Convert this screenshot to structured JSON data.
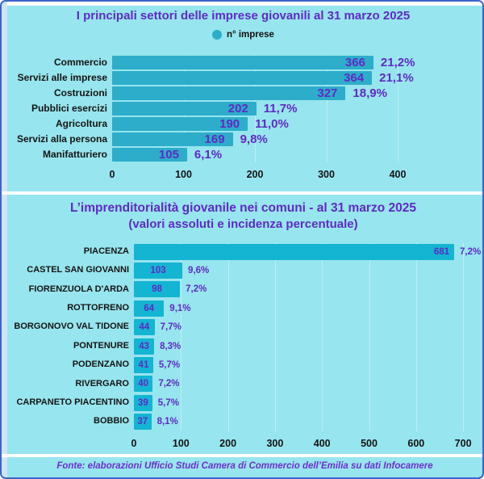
{
  "colors": {
    "background": "#97e5ee",
    "bar_sectors": "#2dadca",
    "bar_comuni": "#14b5d2",
    "purple_text": "#5e2ac6",
    "frame_blue": "#3e63cf",
    "gridline": "#bdeef5",
    "label_black": "#141414"
  },
  "chart_data": [
    {
      "type": "bar",
      "orientation": "horizontal",
      "title": "I principali settori  delle imprese giovanili  al 31 marzo  2025",
      "legend_label": "n° imprese",
      "categories": [
        "Commercio",
        "Servizi alle imprese",
        "Costruzioni",
        "Pubblici esercizi",
        "Agricoltura",
        "Servizi alla persona",
        "Manifatturiero"
      ],
      "values": [
        366,
        364,
        327,
        202,
        190,
        169,
        105
      ],
      "percent_labels": [
        "21,2%",
        "21,1%",
        "18,9%",
        "11,7%",
        "11,0%",
        "9,8%",
        "6,1%"
      ],
      "x_ticks": [
        0,
        100,
        200,
        300,
        400
      ],
      "xlim": [
        0,
        500
      ],
      "grid": true,
      "legend_position": "top-center"
    },
    {
      "type": "bar",
      "orientation": "horizontal",
      "title": "L’imprenditorialità giovanile nei comuni  - al 31 marzo 2025",
      "subtitle": "(valori assoluti e incidenza percentuale)",
      "categories": [
        "PIACENZA",
        "CASTEL SAN GIOVANNI",
        "FIORENZUOLA D'ARDA",
        "ROTTOFRENO",
        "BORGONOVO VAL TIDONE",
        "PONTENURE",
        "PODENZANO",
        "RIVERGARO",
        "CARPANETO PIACENTINO",
        "BOBBIO"
      ],
      "values": [
        681,
        103,
        98,
        64,
        44,
        43,
        41,
        40,
        39,
        37
      ],
      "percent_labels": [
        "7,2%",
        "9,6%",
        "7,2%",
        "9,1%",
        "7,7%",
        "8,3%",
        "5,7%",
        "7,2%",
        "5,7%",
        "8,1%"
      ],
      "x_ticks": [
        0,
        100,
        200,
        300,
        400,
        500,
        600,
        700
      ],
      "xlim": [
        0,
        750
      ],
      "grid": true
    }
  ],
  "footer": {
    "text": "Fonte: elaborazioni Ufficio Studi Camera di Commercio dell’Emilia su dati Infocamere"
  }
}
